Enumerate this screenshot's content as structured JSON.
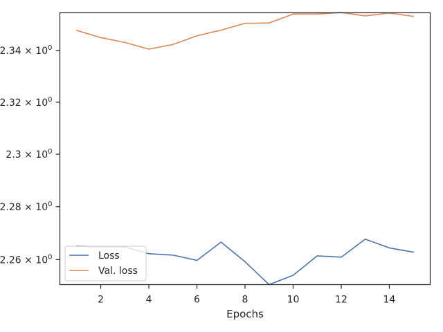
{
  "chart_data": {
    "type": "line",
    "xlabel": "Epochs",
    "ylabel": "",
    "title": "",
    "y_scale": "log",
    "xlim": [
      0.3,
      15.7
    ],
    "ylim": [
      2.2506,
      2.3548
    ],
    "x_ticks": [
      2,
      4,
      6,
      8,
      10,
      12,
      14
    ],
    "x_tick_labels": [
      "2",
      "4",
      "6",
      "8",
      "10",
      "12",
      "14"
    ],
    "y_ticks": [
      2.26,
      2.28,
      2.3,
      2.32,
      2.34
    ],
    "y_tick_labels": [
      {
        "mantissa": "2.26 × 10",
        "exp": "0"
      },
      {
        "mantissa": "2.28 × 10",
        "exp": "0"
      },
      {
        "mantissa": "2.3 × 10",
        "exp": "0"
      },
      {
        "mantissa": "2.32 × 10",
        "exp": "0"
      },
      {
        "mantissa": "2.34 × 10",
        "exp": "0"
      }
    ],
    "grid": false,
    "legend_position": "lower-left",
    "x": [
      1,
      2,
      3,
      4,
      5,
      6,
      7,
      8,
      9,
      10,
      11,
      12,
      13,
      14,
      15
    ],
    "series": [
      {
        "name": "Loss",
        "color": "#4c72b0",
        "values": [
          2.2651,
          2.2648,
          2.2648,
          2.2622,
          2.2617,
          2.2597,
          2.2666,
          2.2592,
          2.2506,
          2.2541,
          2.2614,
          2.2609,
          2.2677,
          2.2644,
          2.2628
        ]
      },
      {
        "name": "Val. loss",
        "color": "#dd8452",
        "values": [
          2.3479,
          2.3451,
          2.3432,
          2.3406,
          2.3424,
          2.3458,
          2.348,
          2.3507,
          2.3508,
          2.3543,
          2.3543,
          2.3549,
          2.3536,
          2.3547,
          2.3534
        ]
      }
    ]
  }
}
